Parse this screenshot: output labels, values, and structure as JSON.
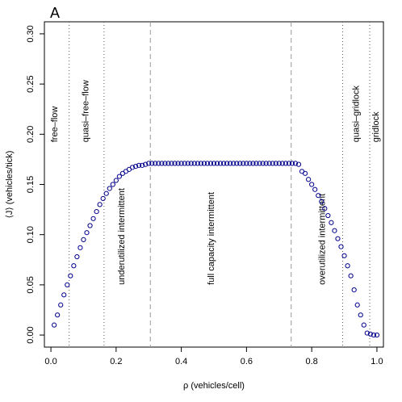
{
  "panel_label": "A",
  "chart_data": {
    "type": "scatter",
    "xlabel": "ρ (vehicles/cell)",
    "ylabel": "⟨J⟩ (vehicles/tick)",
    "xlim": [
      -0.02,
      1.02
    ],
    "ylim": [
      -0.012,
      0.312
    ],
    "x_ticks": [
      0.0,
      0.2,
      0.4,
      0.6,
      0.8,
      1.0
    ],
    "x_tick_labels": [
      "0.0",
      "0.2",
      "0.4",
      "0.6",
      "0.8",
      "1.0"
    ],
    "y_ticks": [
      0.0,
      0.05,
      0.1,
      0.15,
      0.2,
      0.25,
      0.3
    ],
    "y_tick_labels": [
      "0.00",
      "0.05",
      "0.10",
      "0.15",
      "0.20",
      "0.25",
      "0.30"
    ],
    "grid": false,
    "point_color": "#00008B",
    "boundaries": [
      {
        "x": 0.056,
        "style": "dotted"
      },
      {
        "x": 0.163,
        "style": "dotted"
      },
      {
        "x": 0.305,
        "style": "dashed"
      },
      {
        "x": 0.737,
        "style": "dashed"
      },
      {
        "x": 0.895,
        "style": "dotted"
      },
      {
        "x": 0.978,
        "style": "dotted"
      }
    ],
    "regimes": [
      {
        "label": "free–flow",
        "x": 0.02,
        "y": 0.192
      },
      {
        "label": "quasi–free–flow",
        "x": 0.115,
        "y": 0.192
      },
      {
        "label": "underutilized intermittent",
        "x": 0.225,
        "y": 0.05
      },
      {
        "label": "full capacity intermittent",
        "x": 0.5,
        "y": 0.05
      },
      {
        "label": "overutilized intermittent",
        "x": 0.84,
        "y": 0.05
      },
      {
        "label": "quasi–gridlock",
        "x": 0.945,
        "y": 0.192
      },
      {
        "label": "gridlock",
        "x": 1.005,
        "y": 0.192
      }
    ],
    "series": [
      {
        "x": [
          0.01,
          0.02,
          0.03,
          0.04,
          0.05,
          0.06,
          0.07,
          0.08,
          0.09,
          0.1,
          0.11,
          0.12,
          0.13,
          0.14,
          0.15,
          0.16,
          0.17,
          0.18,
          0.19,
          0.2,
          0.21,
          0.22,
          0.23,
          0.24,
          0.25,
          0.26,
          0.27,
          0.28,
          0.29,
          0.3,
          0.31,
          0.32,
          0.33,
          0.34,
          0.35,
          0.36,
          0.37,
          0.38,
          0.39,
          0.4,
          0.41,
          0.42,
          0.43,
          0.44,
          0.45,
          0.46,
          0.47,
          0.48,
          0.49,
          0.5,
          0.51,
          0.52,
          0.53,
          0.54,
          0.55,
          0.56,
          0.57,
          0.58,
          0.59,
          0.6,
          0.61,
          0.62,
          0.63,
          0.64,
          0.65,
          0.66,
          0.67,
          0.68,
          0.69,
          0.7,
          0.71,
          0.72,
          0.73,
          0.74,
          0.75,
          0.76,
          0.77,
          0.78,
          0.79,
          0.8,
          0.81,
          0.82,
          0.83,
          0.84,
          0.85,
          0.86,
          0.87,
          0.88,
          0.89,
          0.9,
          0.91,
          0.92,
          0.93,
          0.94,
          0.95,
          0.96,
          0.97,
          0.98,
          0.99,
          1.0
        ],
        "y": [
          0.01,
          0.02,
          0.03,
          0.04,
          0.05,
          0.059,
          0.069,
          0.078,
          0.087,
          0.095,
          0.102,
          0.109,
          0.116,
          0.123,
          0.13,
          0.136,
          0.141,
          0.146,
          0.15,
          0.154,
          0.158,
          0.161,
          0.163,
          0.165,
          0.167,
          0.168,
          0.169,
          0.169,
          0.17,
          0.171,
          0.171,
          0.171,
          0.171,
          0.171,
          0.171,
          0.171,
          0.171,
          0.171,
          0.171,
          0.171,
          0.171,
          0.171,
          0.171,
          0.171,
          0.171,
          0.171,
          0.171,
          0.171,
          0.171,
          0.171,
          0.171,
          0.171,
          0.171,
          0.171,
          0.171,
          0.171,
          0.171,
          0.171,
          0.171,
          0.171,
          0.171,
          0.171,
          0.171,
          0.171,
          0.171,
          0.171,
          0.171,
          0.171,
          0.171,
          0.171,
          0.171,
          0.171,
          0.171,
          0.171,
          0.171,
          0.17,
          0.163,
          0.161,
          0.155,
          0.15,
          0.145,
          0.139,
          0.133,
          0.126,
          0.119,
          0.112,
          0.104,
          0.096,
          0.088,
          0.079,
          0.069,
          0.059,
          0.045,
          0.03,
          0.02,
          0.01,
          0.002,
          0.001,
          0.0,
          0.0
        ]
      }
    ]
  }
}
